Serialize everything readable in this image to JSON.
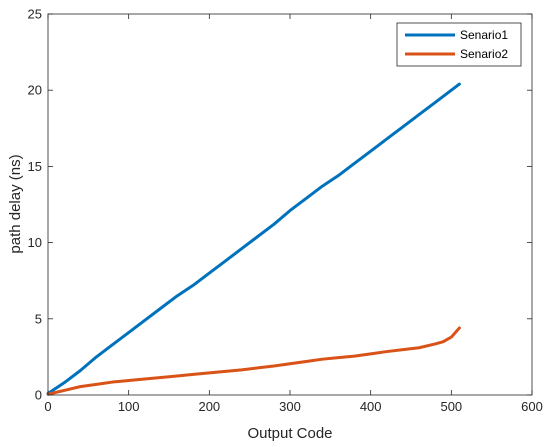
{
  "chart_data": {
    "type": "line",
    "xlabel": "Output Code",
    "ylabel": "path delay (ns)",
    "xlim": [
      0,
      600
    ],
    "ylim": [
      0,
      25
    ],
    "xticks": [
      0,
      100,
      200,
      300,
      400,
      500,
      600
    ],
    "yticks": [
      0,
      5,
      10,
      15,
      20,
      25
    ],
    "grid": false,
    "legend_position": "top-right",
    "series": [
      {
        "name": "Senario1",
        "color": "#0072BD",
        "x": [
          0,
          20,
          40,
          60,
          80,
          100,
          120,
          140,
          160,
          180,
          200,
          220,
          240,
          260,
          280,
          300,
          320,
          340,
          360,
          380,
          400,
          420,
          440,
          460,
          480,
          500,
          510
        ],
        "y": [
          0.1,
          0.8,
          1.6,
          2.5,
          3.3,
          4.1,
          4.9,
          5.7,
          6.5,
          7.2,
          8.0,
          8.8,
          9.6,
          10.4,
          11.2,
          12.1,
          12.9,
          13.7,
          14.4,
          15.2,
          16.0,
          16.8,
          17.6,
          18.4,
          19.2,
          20.0,
          20.4
        ]
      },
      {
        "name": "Senario2",
        "color": "#D95319",
        "x": [
          0,
          20,
          40,
          60,
          80,
          100,
          120,
          140,
          160,
          180,
          200,
          220,
          240,
          260,
          280,
          300,
          320,
          340,
          360,
          380,
          400,
          420,
          440,
          460,
          480,
          490,
          500,
          510
        ],
        "y": [
          0.05,
          0.3,
          0.55,
          0.7,
          0.85,
          0.95,
          1.05,
          1.15,
          1.25,
          1.35,
          1.45,
          1.55,
          1.65,
          1.78,
          1.9,
          2.05,
          2.2,
          2.35,
          2.45,
          2.55,
          2.7,
          2.85,
          2.98,
          3.1,
          3.35,
          3.5,
          3.8,
          4.4
        ]
      }
    ]
  }
}
